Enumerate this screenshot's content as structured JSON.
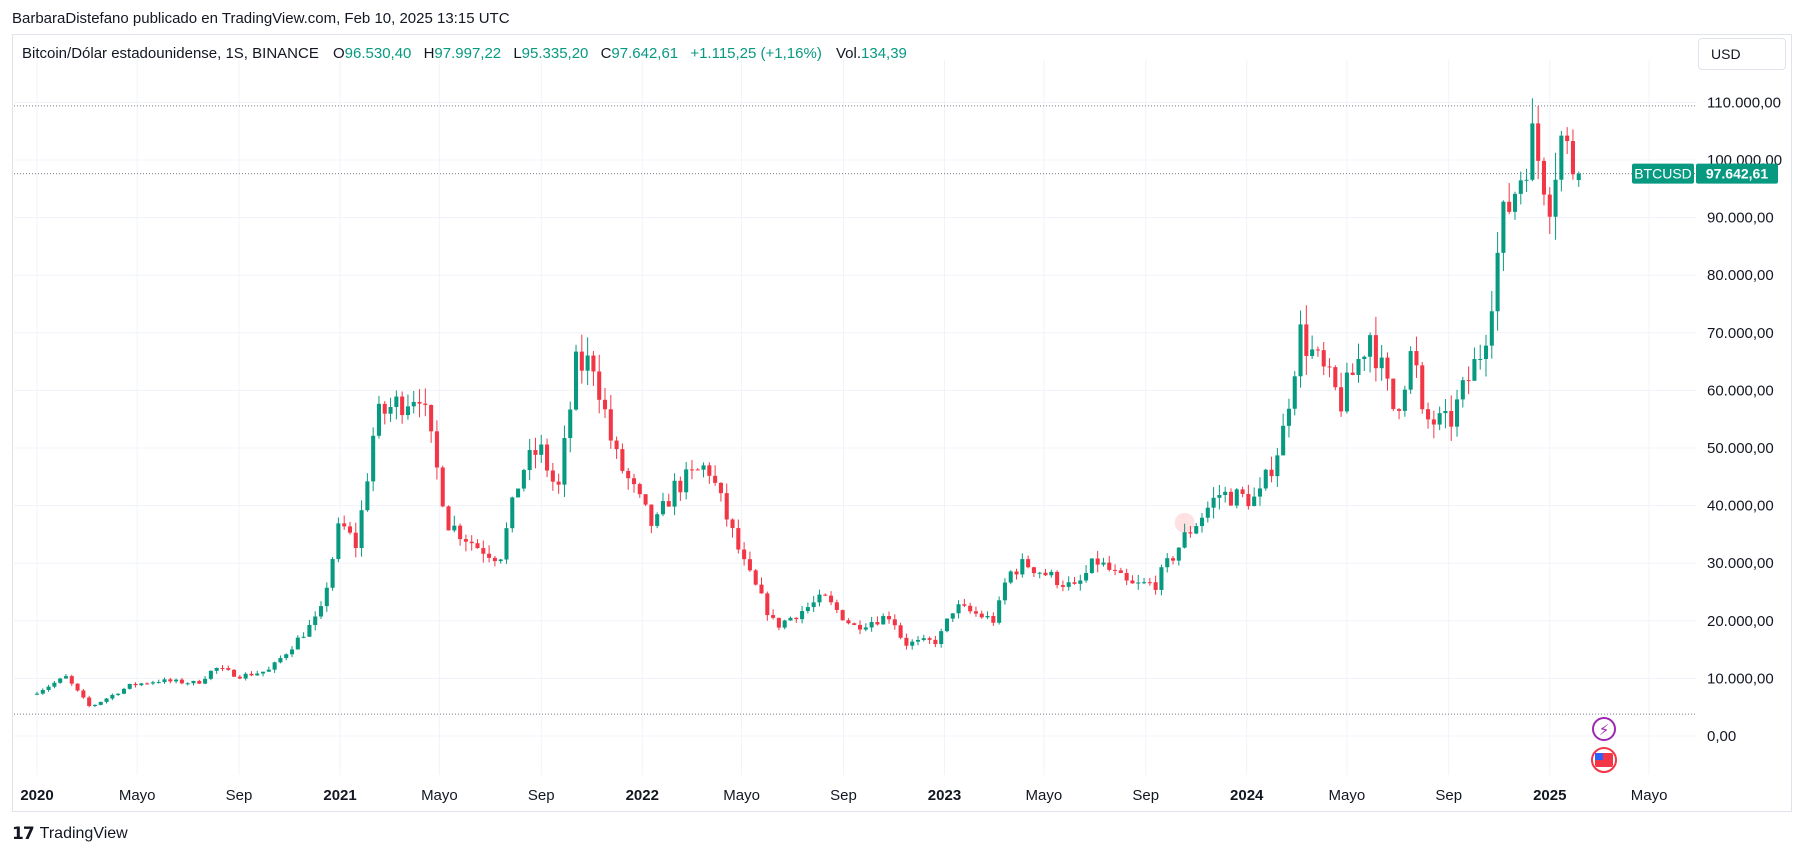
{
  "header": {
    "caption": "BarbaraDistefano publicado en TradingView.com, Feb 10, 2025 13:15 UTC"
  },
  "legend": {
    "symbol": "Bitcoin/Dólar estadounidense, 1S, BINANCE",
    "open_label": "O",
    "open": "96.530,40",
    "high_label": "H",
    "high": "97.997,22",
    "low_label": "L",
    "low": "95.335,20",
    "close_label": "C",
    "close": "97.642,61",
    "change": "+1.115,25 (+1,16%)",
    "vol_label": "Vol.",
    "vol": "134,39"
  },
  "currency": "USD",
  "price_tag": {
    "symbol": "BTCUSD",
    "price": "97.642,61"
  },
  "footer": {
    "brand": "TradingView"
  },
  "colors": {
    "up": "#089981",
    "down": "#f23645",
    "grid": "#f0f3fa",
    "axis_text": "#131722"
  },
  "chart_data": {
    "type": "candlestick",
    "interval": "1W",
    "y_axis": {
      "ylim": [
        -6000,
        116000
      ],
      "ticks": [
        0,
        10000,
        20000,
        30000,
        40000,
        50000,
        60000,
        70000,
        80000,
        90000,
        100000,
        110000
      ],
      "tick_labels": [
        "0,00",
        "10.000,00",
        "20.000,00",
        "30.000,00",
        "40.000,00",
        "50.000,00",
        "60.000,00",
        "70.000,00",
        "80.000,00",
        "90.000,00",
        "100.000,00",
        "110.000,00"
      ],
      "side": "right"
    },
    "x_axis": {
      "start": "2020-01-01",
      "end": "2025-05-25",
      "ticks": [
        {
          "date": "2020-01-01",
          "label": "2020",
          "bold": true
        },
        {
          "date": "2020-05-01",
          "label": "Mayo",
          "bold": false
        },
        {
          "date": "2020-09-01",
          "label": "Sep",
          "bold": false
        },
        {
          "date": "2021-01-01",
          "label": "2021",
          "bold": true
        },
        {
          "date": "2021-05-01",
          "label": "Mayo",
          "bold": false
        },
        {
          "date": "2021-09-01",
          "label": "Sep",
          "bold": false
        },
        {
          "date": "2022-01-01",
          "label": "2022",
          "bold": true
        },
        {
          "date": "2022-05-01",
          "label": "Mayo",
          "bold": false
        },
        {
          "date": "2022-09-01",
          "label": "Sep",
          "bold": false
        },
        {
          "date": "2023-01-01",
          "label": "2023",
          "bold": true
        },
        {
          "date": "2023-05-01",
          "label": "Mayo",
          "bold": false
        },
        {
          "date": "2023-09-01",
          "label": "Sep",
          "bold": false
        },
        {
          "date": "2024-01-01",
          "label": "2024",
          "bold": true
        },
        {
          "date": "2024-05-01",
          "label": "Mayo",
          "bold": false
        },
        {
          "date": "2024-09-01",
          "label": "Sep",
          "bold": false
        },
        {
          "date": "2025-01-01",
          "label": "2025",
          "bold": true
        },
        {
          "date": "2025-05-01",
          "label": "Mayo",
          "bold": false
        }
      ]
    },
    "reference_lines": [
      {
        "price": 109400,
        "style": "dotted"
      },
      {
        "price": 97642.61,
        "style": "dotted",
        "label": "BTCUSD"
      },
      {
        "price": 3800,
        "style": "dotted"
      }
    ],
    "price_path": [
      {
        "date": "2020-01-01",
        "close": 7200
      },
      {
        "date": "2020-02-12",
        "close": 10200
      },
      {
        "date": "2020-03-12",
        "close": 5000
      },
      {
        "date": "2020-04-30",
        "close": 8800
      },
      {
        "date": "2020-06-01",
        "close": 9600
      },
      {
        "date": "2020-07-20",
        "close": 9200
      },
      {
        "date": "2020-08-10",
        "close": 11800
      },
      {
        "date": "2020-09-10",
        "close": 10400
      },
      {
        "date": "2020-10-15",
        "close": 11400
      },
      {
        "date": "2020-11-10",
        "close": 15500
      },
      {
        "date": "2020-12-15",
        "close": 21000
      },
      {
        "date": "2021-01-08",
        "close": 37000
      },
      {
        "date": "2021-01-28",
        "close": 33000
      },
      {
        "date": "2021-02-20",
        "close": 55000
      },
      {
        "date": "2021-03-10",
        "close": 57000
      },
      {
        "date": "2021-04-14",
        "close": 60000
      },
      {
        "date": "2021-05-19",
        "close": 37000
      },
      {
        "date": "2021-06-22",
        "close": 33000
      },
      {
        "date": "2021-07-20",
        "close": 31000
      },
      {
        "date": "2021-08-15",
        "close": 46000
      },
      {
        "date": "2021-09-06",
        "close": 50000
      },
      {
        "date": "2021-09-28",
        "close": 42000
      },
      {
        "date": "2021-10-20",
        "close": 64000
      },
      {
        "date": "2021-11-10",
        "close": 65000
      },
      {
        "date": "2021-12-05",
        "close": 49000
      },
      {
        "date": "2022-01-22",
        "close": 36000
      },
      {
        "date": "2022-02-15",
        "close": 43000
      },
      {
        "date": "2022-03-28",
        "close": 47000
      },
      {
        "date": "2022-05-10",
        "close": 30000
      },
      {
        "date": "2022-06-18",
        "close": 19000
      },
      {
        "date": "2022-08-15",
        "close": 24000
      },
      {
        "date": "2022-09-20",
        "close": 19000
      },
      {
        "date": "2022-11-05",
        "close": 21000
      },
      {
        "date": "2022-11-20",
        "close": 16000
      },
      {
        "date": "2022-12-31",
        "close": 16500
      },
      {
        "date": "2023-01-20",
        "close": 22500
      },
      {
        "date": "2023-03-10",
        "close": 20000
      },
      {
        "date": "2023-03-25",
        "close": 28000
      },
      {
        "date": "2023-04-15",
        "close": 30000
      },
      {
        "date": "2023-06-15",
        "close": 25500
      },
      {
        "date": "2023-07-10",
        "close": 30500
      },
      {
        "date": "2023-08-20",
        "close": 26000
      },
      {
        "date": "2023-09-20",
        "close": 26500
      },
      {
        "date": "2023-10-25",
        "close": 34500
      },
      {
        "date": "2023-12-05",
        "close": 42000
      },
      {
        "date": "2024-01-22",
        "close": 41000
      },
      {
        "date": "2024-02-20",
        "close": 52000
      },
      {
        "date": "2024-03-12",
        "close": 70000
      },
      {
        "date": "2024-05-01",
        "close": 58000
      },
      {
        "date": "2024-06-05",
        "close": 70000
      },
      {
        "date": "2024-07-05",
        "close": 56000
      },
      {
        "date": "2024-07-28",
        "close": 68000
      },
      {
        "date": "2024-08-05",
        "close": 55000
      },
      {
        "date": "2024-09-08",
        "close": 54000
      },
      {
        "date": "2024-10-20",
        "close": 68000
      },
      {
        "date": "2024-11-12",
        "close": 89000
      },
      {
        "date": "2024-12-05",
        "close": 98000
      },
      {
        "date": "2024-12-17",
        "close": 104000
      },
      {
        "date": "2025-01-08",
        "close": 94000
      },
      {
        "date": "2025-01-21",
        "close": 104000
      },
      {
        "date": "2025-02-10",
        "close": 97642
      }
    ]
  }
}
